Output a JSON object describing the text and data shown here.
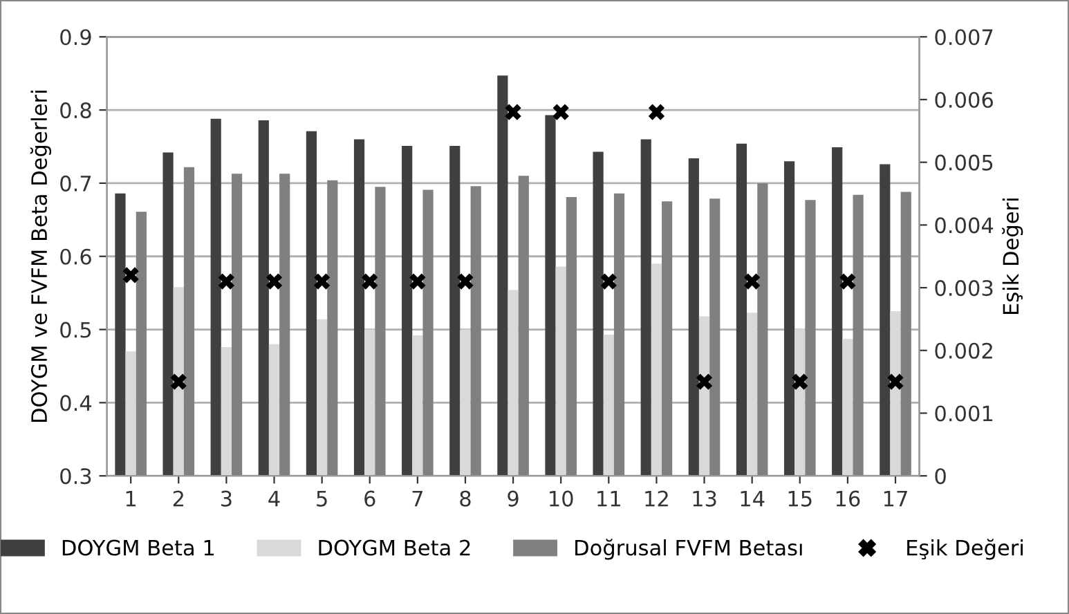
{
  "chart_data": {
    "type": "bar",
    "ylabel": "DOYGM ve FVFM Beta Değerleri",
    "y2label": "Eşik Değeri",
    "categories": [
      "1",
      "2",
      "3",
      "4",
      "5",
      "6",
      "7",
      "8",
      "9",
      "10",
      "11",
      "12",
      "13",
      "14",
      "15",
      "16",
      "17"
    ],
    "series": [
      {
        "name": "DOYGM Beta 1",
        "color": "#404040",
        "values": [
          0.686,
          0.742,
          0.788,
          0.786,
          0.771,
          0.76,
          0.751,
          0.751,
          0.847,
          0.793,
          0.743,
          0.76,
          0.734,
          0.754,
          0.73,
          0.749,
          0.726
        ]
      },
      {
        "name": "DOYGM Beta 2",
        "color": "#d9d9d9",
        "values": [
          0.47,
          0.558,
          0.476,
          0.48,
          0.514,
          0.5,
          0.492,
          0.5,
          0.554,
          0.586,
          0.493,
          0.59,
          0.518,
          0.523,
          0.501,
          0.487,
          0.525
        ]
      },
      {
        "name": "Doğrusal FVFM Betası",
        "color": "#808080",
        "values": [
          0.661,
          0.722,
          0.713,
          0.713,
          0.704,
          0.695,
          0.691,
          0.696,
          0.71,
          0.681,
          0.686,
          0.675,
          0.679,
          0.7,
          0.677,
          0.684,
          0.688
        ]
      },
      {
        "name": "Eşik Değeri",
        "type": "scatter",
        "axis": "y2",
        "marker": "cross",
        "color": "#000000",
        "values": [
          0.0032,
          0.0015,
          0.0031,
          0.0031,
          0.0031,
          0.0031,
          0.0031,
          0.0031,
          0.0058,
          0.0058,
          0.0031,
          0.0058,
          0.0015,
          0.0031,
          0.0015,
          0.0031,
          0.0015
        ]
      }
    ],
    "ylim": [
      0.3,
      0.9
    ],
    "yticks": [
      0.3,
      0.4,
      0.5,
      0.6,
      0.7,
      0.8,
      0.9
    ],
    "y2lim": [
      0,
      0.007
    ],
    "y2ticks": [
      0,
      0.001,
      0.002,
      0.003,
      0.004,
      0.005,
      0.006,
      0.007
    ],
    "grid": "y",
    "legend": "bottom"
  }
}
